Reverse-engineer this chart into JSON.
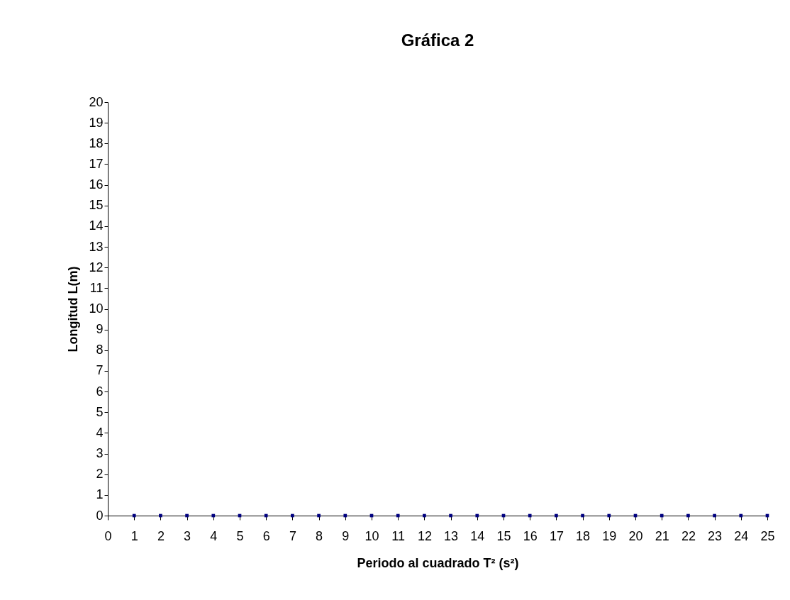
{
  "chart_data": {
    "type": "scatter",
    "title": "Gráfica 2",
    "xlabel": "Periodo al cuadrado T² (s²)",
    "ylabel": "Longitud L(m)",
    "x": [
      1,
      2,
      3,
      4,
      5,
      6,
      7,
      8,
      9,
      10,
      11,
      12,
      13,
      14,
      15,
      16,
      17,
      18,
      19,
      20,
      21,
      22,
      23,
      24,
      25
    ],
    "series": [
      {
        "color": "#000080",
        "values": [
          0,
          0,
          0,
          0,
          0,
          0,
          0,
          0,
          0,
          0,
          0,
          0,
          0,
          0,
          0,
          0,
          0,
          0,
          0,
          0,
          0,
          0,
          0,
          0,
          0
        ]
      }
    ],
    "xlim": [
      0,
      25
    ],
    "xticks": [
      0,
      1,
      2,
      3,
      4,
      5,
      6,
      7,
      8,
      9,
      10,
      11,
      12,
      13,
      14,
      15,
      16,
      17,
      18,
      19,
      20,
      21,
      22,
      23,
      24,
      25
    ],
    "ylim": [
      0,
      20
    ],
    "yticks": [
      0,
      1,
      2,
      3,
      4,
      5,
      6,
      7,
      8,
      9,
      10,
      11,
      12,
      13,
      14,
      15,
      16,
      17,
      18,
      19,
      20
    ],
    "grid": false,
    "legend": false,
    "marker": "square"
  }
}
